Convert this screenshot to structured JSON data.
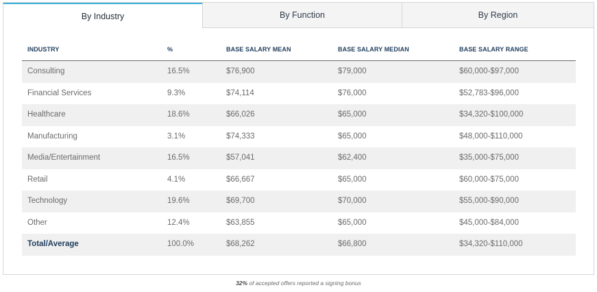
{
  "tabs": {
    "industry": "By Industry",
    "function": "By Function",
    "region": "By Region"
  },
  "columns": {
    "industry": "INDUSTRY",
    "percent": "%",
    "mean": "BASE SALARY MEAN",
    "median": "BASE SALARY MEDIAN",
    "range": "BASE SALARY RANGE"
  },
  "rows": [
    {
      "industry": "Consulting",
      "percent": "16.5%",
      "mean": "$76,900",
      "median": "$79,000",
      "range": "$60,000-$97,000"
    },
    {
      "industry": "Financial Services",
      "percent": "9.3%",
      "mean": "$74,114",
      "median": "$76,000",
      "range": "$52,783-$96,000"
    },
    {
      "industry": "Healthcare",
      "percent": "18.6%",
      "mean": "$66,026",
      "median": "$65,000",
      "range": "$34,320-$100,000"
    },
    {
      "industry": "Manufacturing",
      "percent": "3.1%",
      "mean": "$74,333",
      "median": "$65,000",
      "range": "$48,000-$110,000"
    },
    {
      "industry": "Media/Entertainment",
      "percent": "16.5%",
      "mean": "$57,041",
      "median": "$62,400",
      "range": "$35,000-$75,000"
    },
    {
      "industry": "Retail",
      "percent": "4.1%",
      "mean": "$66,667",
      "median": "$65,000",
      "range": "$60,000-$75,000"
    },
    {
      "industry": "Technology",
      "percent": "19.6%",
      "mean": "$69,700",
      "median": "$70,000",
      "range": "$55,000-$90,000"
    },
    {
      "industry": "Other",
      "percent": "12.4%",
      "mean": "$63,855",
      "median": "$65,000",
      "range": "$45,000-$84,000"
    },
    {
      "industry": "Total/Average",
      "percent": "100.0%",
      "mean": "$68,262",
      "median": "$66,800",
      "range": "$34,320-$110,000"
    }
  ],
  "footnote": {
    "highlight": "32%",
    "text": " of accepted offers reported a signing bonus"
  },
  "colors": {
    "accent": "#3aaed8",
    "header_text": "#1e3d5c",
    "row_shade": "#f0f0f0"
  }
}
